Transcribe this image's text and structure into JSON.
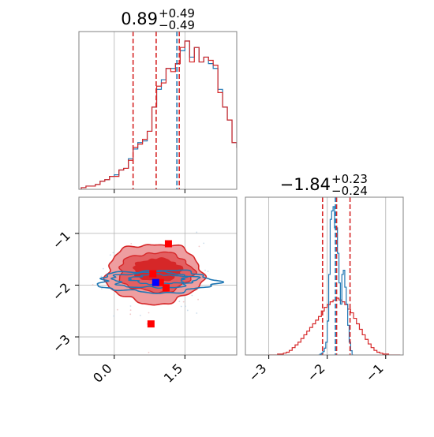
{
  "chart_data": {
    "type": "corner",
    "colors": {
      "series_a": "#d62728",
      "series_b": "#1f77b4",
      "grid": "#b0b0b0",
      "frame": "#808080",
      "marker_red": "#ff0000",
      "marker_blue": "#0000ff"
    },
    "param1": {
      "title_main": "0.89",
      "title_plus": "+0.49",
      "title_minus": "−0.49",
      "xlim": [
        -0.75,
        2.6
      ],
      "ticks": [
        0.0,
        1.5
      ],
      "tick_labels": [
        "0.0",
        "1.5"
      ],
      "quantiles_red": [
        0.4,
        0.89,
        1.38
      ],
      "median_blue": 1.33,
      "hist_red": {
        "bin_start": -0.7,
        "bin_width": 0.1,
        "counts": [
          1,
          2,
          2,
          3,
          5,
          6,
          8,
          8,
          12,
          13,
          18,
          26,
          28,
          31,
          36,
          51,
          64,
          66,
          75,
          73,
          78,
          88,
          92,
          79,
          88,
          79,
          82,
          80,
          77,
          60,
          51,
          43,
          29,
          26,
          23,
          15,
          10,
          8,
          6,
          5,
          3,
          3,
          1,
          0,
          0,
          0,
          0,
          0,
          0,
          0,
          0,
          0,
          0
        ]
      },
      "hist_blue": {
        "bin_start": -0.7,
        "bin_width": 0.1,
        "counts": [
          1,
          2,
          2,
          3,
          5,
          6,
          8,
          9,
          12,
          13,
          19,
          25,
          29,
          30,
          36,
          51,
          62,
          68,
          75,
          75,
          78,
          86,
          92,
          82,
          88,
          79,
          82,
          78,
          75,
          62,
          51,
          43,
          29,
          26,
          23,
          15,
          10,
          8,
          6,
          5,
          3,
          3,
          1,
          0,
          0,
          0,
          0,
          0,
          0,
          0,
          0,
          0,
          0
        ]
      }
    },
    "param2": {
      "title_main": "−1.84",
      "title_plus": "+0.23",
      "title_minus": "−0.24",
      "xlim": [
        -3.4,
        -0.7
      ],
      "ticks": [
        -3,
        -2,
        -1
      ],
      "tick_labels": [
        "−3",
        "−2",
        "−1"
      ],
      "quantiles_red": [
        -2.08,
        -1.84,
        -1.61
      ],
      "median_blue": -1.86,
      "hist_red": {
        "bin_start": -3.0,
        "bin_width": 0.05,
        "counts": [
          0,
          0,
          0,
          1,
          1,
          2,
          3,
          5,
          8,
          11,
          14,
          18,
          22,
          26,
          30,
          34,
          38,
          42,
          48,
          52,
          55,
          58,
          60,
          62,
          60,
          58,
          55,
          50,
          46,
          40,
          34,
          28,
          22,
          17,
          12,
          8,
          5,
          3,
          2,
          1,
          1,
          0,
          0,
          0,
          0
        ]
      },
      "hist_blue": {
        "bin_start": -2.15,
        "bin_width": 0.025,
        "counts": [
          0,
          1,
          2,
          4,
          8,
          15,
          40,
          95,
          160,
          170,
          175,
          150,
          150,
          120,
          85,
          60,
          95,
          100,
          80,
          60,
          35,
          15,
          5,
          0
        ]
      }
    },
    "joint": {
      "xlabel_ticks": [
        "0.0",
        "1.5"
      ],
      "ylabel_ticks": [
        "−1",
        "−2",
        "−3"
      ],
      "ylim": [
        -3.35,
        -0.3
      ],
      "red_points": [
        [
          1.15,
          -1.2
        ],
        [
          0.78,
          -2.75
        ],
        [
          0.82,
          -1.78
        ],
        [
          0.98,
          -1.95
        ],
        [
          1.1,
          -2.05
        ]
      ],
      "blue_point": [
        0.88,
        -1.95
      ]
    }
  }
}
